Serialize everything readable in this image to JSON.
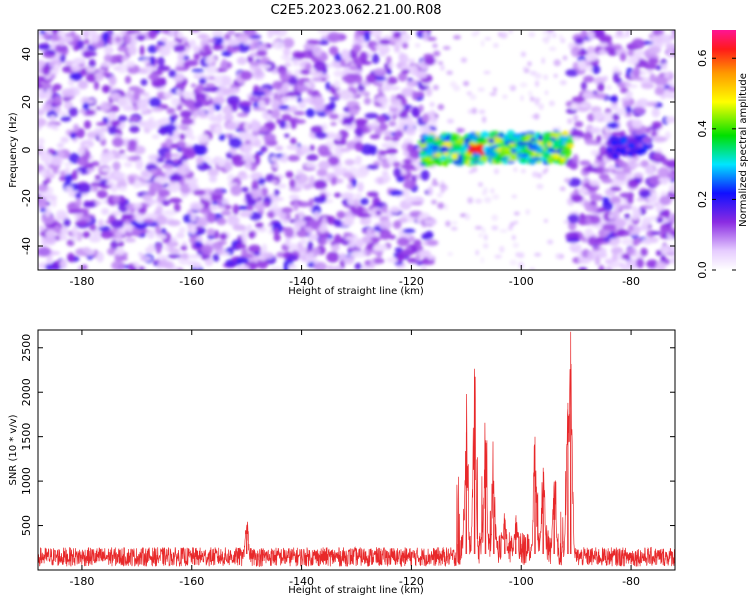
{
  "title": "C2E5.2023.062.21.00.R08",
  "chart_data": [
    {
      "type": "heatmap",
      "xlabel": "Height of straight line (km)",
      "ylabel": "Frequency (Hz)",
      "xlim": [
        -188,
        -72
      ],
      "ylim": [
        -50,
        50
      ],
      "xticks": [
        -180,
        -160,
        -140,
        -120,
        -100,
        -80
      ],
      "yticks": [
        -40,
        -20,
        0,
        20,
        40
      ],
      "colorbar": {
        "label": "Normalized spectral amplitude",
        "range": [
          0.0,
          0.68
        ],
        "ticks": [
          0.0,
          0.2,
          0.4,
          0.6
        ],
        "colormap": "white-purple-blue-cyan-green-yellow-orange-red-magenta"
      },
      "features": [
        {
          "name": "noise",
          "x_range": [
            -188,
            -116
          ],
          "freq_range": [
            -50,
            50
          ],
          "amplitude": 0.15
        },
        {
          "name": "echo",
          "x_range": [
            -118,
            -91
          ],
          "freq_range": [
            -6,
            6
          ],
          "amplitude_peak": 0.62,
          "peak_at": -108
        },
        {
          "name": "noise",
          "x_range": [
            -91,
            -72
          ],
          "freq_range": [
            -50,
            50
          ],
          "amplitude": 0.15
        },
        {
          "name": "echo",
          "x_range": [
            -84,
            -77
          ],
          "freq_range": [
            -3,
            5
          ],
          "amplitude_peak": 0.3
        }
      ]
    },
    {
      "type": "line",
      "xlabel": "Height of straight line (km)",
      "ylabel": "SNR (10 * v/v)",
      "xlim": [
        -188,
        -72
      ],
      "ylim": [
        0,
        2700
      ],
      "xticks": [
        -180,
        -160,
        -140,
        -120,
        -100,
        -80
      ],
      "yticks": [
        500,
        1000,
        1500,
        2000,
        2500
      ],
      "color": "#e8282a",
      "baseline": 180,
      "peaks": [
        {
          "x": -110,
          "y": 1550
        },
        {
          "x": -108.5,
          "y": 2110
        },
        {
          "x": -106.5,
          "y": 1460
        },
        {
          "x": -105,
          "y": 950
        },
        {
          "x": -103,
          "y": 580
        },
        {
          "x": -101,
          "y": 590
        },
        {
          "x": -97.5,
          "y": 1500
        },
        {
          "x": -96,
          "y": 1150
        },
        {
          "x": -94,
          "y": 990
        },
        {
          "x": -91.5,
          "y": 1880
        },
        {
          "x": -91,
          "y": 2680
        },
        {
          "x": -150,
          "y": 500
        }
      ]
    }
  ]
}
